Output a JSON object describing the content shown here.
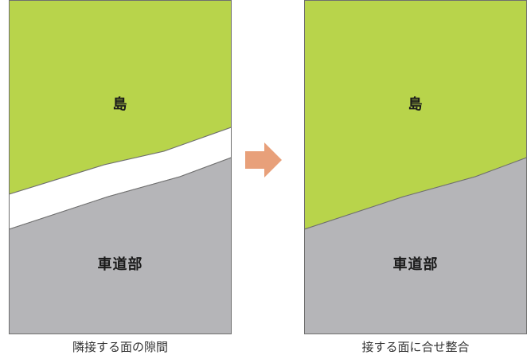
{
  "colors": {
    "island": "#b8d44b",
    "road": "#b5b5b8",
    "gap": "#ffffff",
    "border": "#6f6f6f",
    "arrow": "#e8a07a"
  },
  "left_panel": {
    "top_label": "島",
    "bottom_label": "車道部",
    "caption": "隣接する面の隙間"
  },
  "right_panel": {
    "top_label": "島",
    "bottom_label": "車道部",
    "caption": "接する面に合せ整合"
  },
  "arrow_icon": "right-arrow-icon"
}
